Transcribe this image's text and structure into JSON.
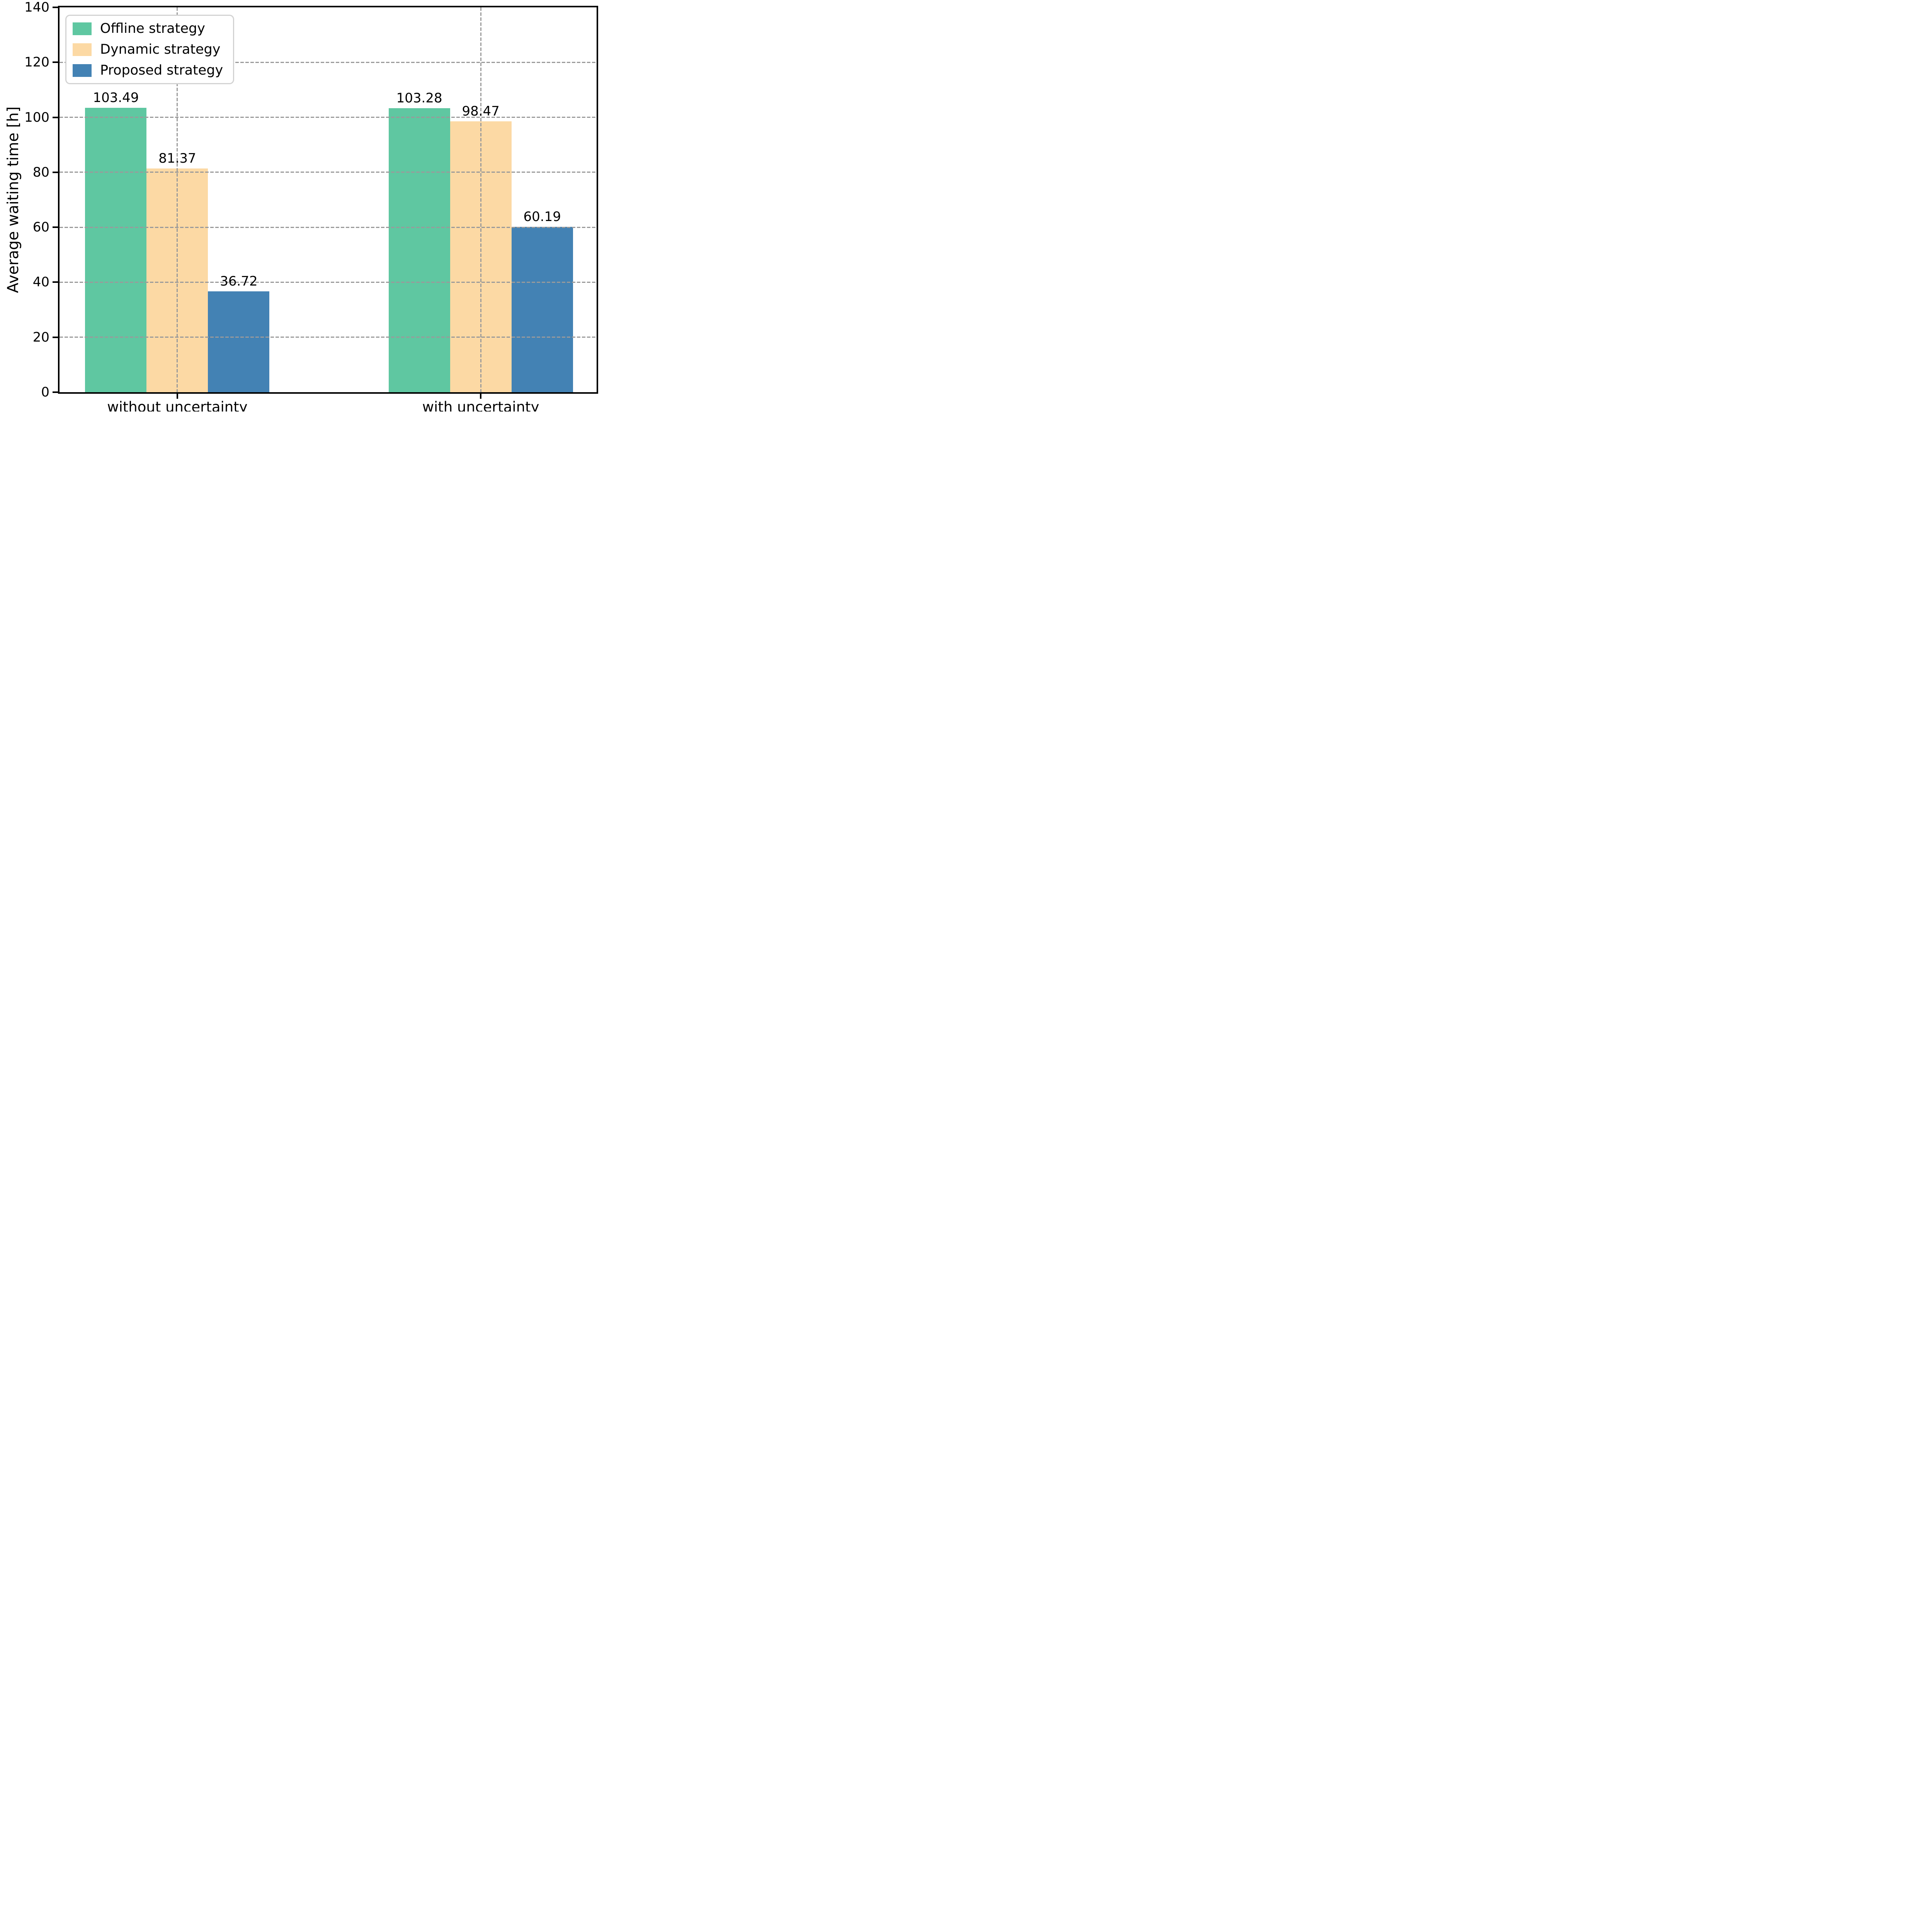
{
  "chart_data": {
    "type": "bar",
    "title": "",
    "categories": [
      "without uncertainty",
      "with uncertainty"
    ],
    "series": [
      {
        "name": "Offline strategy",
        "color": "#5fc7a1",
        "values": [
          103.49,
          103.28
        ],
        "value_labels": [
          "103.49",
          "103.28"
        ]
      },
      {
        "name": "Dynamic strategy",
        "color": "#fcd9a4",
        "values": [
          81.37,
          98.47
        ],
        "value_labels": [
          "81.37",
          "98.47"
        ]
      },
      {
        "name": "Proposed strategy",
        "color": "#4382b4",
        "values": [
          36.72,
          60.19
        ],
        "value_labels": [
          "36.72",
          "60.19"
        ]
      }
    ],
    "xlabel": "",
    "ylabel": "Average waiting time [h]",
    "ylim": [
      0,
      140
    ],
    "yticks": [
      0,
      20,
      40,
      60,
      80,
      100,
      120,
      140
    ],
    "ytick_labels": [
      "0",
      "20",
      "40",
      "60",
      "80",
      "100",
      "120",
      "140"
    ],
    "grid": "dashed",
    "grid_color": "#9a9a9a",
    "legend_position": "upper left"
  },
  "styles": {
    "background": "#ffffff",
    "spine_color": "#000000",
    "text_color": "#000000",
    "legend_border_color": "#d3d3d3"
  }
}
